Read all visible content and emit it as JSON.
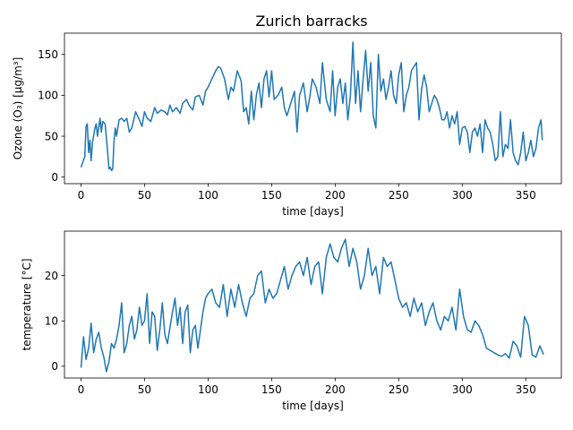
{
  "figure": {
    "title": "Zurich barracks"
  },
  "chart_data": [
    {
      "type": "line",
      "title": "Zurich barracks",
      "xlabel": "time [days]",
      "ylabel": "Ozone (O₃) [µg/m³]",
      "xlim": [
        -13,
        378
      ],
      "ylim": [
        -8,
        176
      ],
      "xticks": [
        0,
        50,
        100,
        150,
        200,
        250,
        300,
        350
      ],
      "yticks": [
        0,
        50,
        100,
        150
      ],
      "grid": false,
      "series": [
        {
          "color": "#1f77b4",
          "x": [
            0,
            3,
            4,
            5,
            6,
            7,
            8,
            9,
            11,
            12,
            13,
            15,
            16,
            17,
            19,
            21,
            22,
            23,
            24,
            25,
            26,
            27,
            28,
            30,
            32,
            34,
            36,
            38,
            40,
            43,
            46,
            48,
            50,
            52,
            55,
            58,
            60,
            63,
            66,
            68,
            70,
            72,
            75,
            78,
            80,
            83,
            85,
            88,
            90,
            93,
            96,
            98,
            100,
            103,
            106,
            108,
            110,
            113,
            116,
            118,
            120,
            123,
            126,
            128,
            130,
            132,
            134,
            136,
            138,
            140,
            142,
            144,
            146,
            148,
            150,
            152,
            155,
            158,
            160,
            162,
            165,
            168,
            170,
            172,
            175,
            178,
            180,
            182,
            185,
            188,
            190,
            193,
            196,
            198,
            200,
            202,
            204,
            206,
            208,
            210,
            212,
            214,
            216,
            218,
            220,
            222,
            224,
            226,
            228,
            230,
            232,
            234,
            236,
            238,
            240,
            242,
            244,
            246,
            248,
            250,
            252,
            254,
            256,
            258,
            260,
            262,
            264,
            266,
            268,
            270,
            272,
            274,
            276,
            278,
            280,
            282,
            284,
            286,
            288,
            290,
            292,
            294,
            296,
            298,
            300,
            302,
            304,
            306,
            308,
            310,
            312,
            314,
            316,
            318,
            320,
            322,
            324,
            326,
            328,
            330,
            332,
            334,
            336,
            338,
            340,
            342,
            344,
            346,
            348,
            350,
            352,
            354,
            356,
            358,
            360,
            362,
            363
          ],
          "y": [
            12,
            25,
            62,
            65,
            30,
            45,
            20,
            42,
            60,
            65,
            50,
            72,
            55,
            68,
            65,
            30,
            10,
            12,
            8,
            10,
            45,
            60,
            50,
            70,
            72,
            68,
            72,
            55,
            60,
            80,
            70,
            62,
            80,
            72,
            68,
            85,
            78,
            82,
            80,
            76,
            88,
            80,
            85,
            78,
            90,
            95,
            88,
            82,
            98,
            100,
            88,
            105,
            110,
            120,
            130,
            135,
            133,
            120,
            95,
            110,
            105,
            130,
            118,
            80,
            85,
            65,
            105,
            70,
            100,
            115,
            85,
            120,
            130,
            98,
            130,
            95,
            100,
            110,
            85,
            75,
            90,
            105,
            55,
            100,
            115,
            80,
            98,
            120,
            110,
            90,
            140,
            95,
            80,
            130,
            75,
            110,
            120,
            90,
            115,
            70,
            100,
            165,
            90,
            130,
            80,
            120,
            155,
            105,
            140,
            75,
            60,
            150,
            105,
            120,
            95,
            110,
            130,
            100,
            90,
            125,
            140,
            80,
            100,
            110,
            130,
            135,
            140,
            70,
            108,
            125,
            110,
            80,
            90,
            100,
            95,
            85,
            70,
            70,
            80,
            60,
            75,
            65,
            80,
            40,
            60,
            62,
            55,
            30,
            55,
            60,
            50,
            65,
            30,
            70,
            60,
            55,
            40,
            20,
            25,
            80,
            25,
            40,
            35,
            70,
            30,
            20,
            15,
            30,
            55,
            20,
            30,
            45,
            25,
            35,
            60,
            70,
            45
          ]
        }
      ]
    },
    {
      "type": "line",
      "title": "",
      "xlabel": "time [days]",
      "ylabel": "temperature [°C]",
      "xlim": [
        -13,
        378
      ],
      "ylim": [
        -2.6,
        29.8
      ],
      "xticks": [
        0,
        50,
        100,
        150,
        200,
        250,
        300,
        350
      ],
      "yticks": [
        0,
        10,
        20
      ],
      "grid": false,
      "series": [
        {
          "color": "#1f77b4",
          "x": [
            0,
            2,
            4,
            6,
            8,
            10,
            12,
            14,
            16,
            18,
            20,
            22,
            24,
            26,
            28,
            30,
            32,
            34,
            36,
            38,
            40,
            42,
            44,
            46,
            48,
            50,
            52,
            54,
            56,
            58,
            60,
            62,
            64,
            66,
            68,
            70,
            72,
            74,
            76,
            78,
            80,
            82,
            84,
            86,
            88,
            90,
            92,
            94,
            96,
            98,
            100,
            103,
            106,
            109,
            112,
            115,
            118,
            121,
            124,
            127,
            130,
            133,
            136,
            139,
            142,
            145,
            148,
            151,
            154,
            157,
            160,
            163,
            166,
            169,
            172,
            175,
            178,
            181,
            184,
            187,
            190,
            193,
            196,
            199,
            202,
            205,
            208,
            211,
            214,
            217,
            220,
            223,
            226,
            229,
            232,
            235,
            238,
            241,
            244,
            247,
            250,
            253,
            256,
            259,
            262,
            265,
            268,
            271,
            274,
            277,
            280,
            283,
            286,
            289,
            292,
            295,
            298,
            301,
            304,
            307,
            310,
            313,
            316,
            319,
            322,
            325,
            328,
            331,
            334,
            337,
            340,
            343,
            346,
            349,
            352,
            355,
            358,
            361,
            364
          ],
          "y": [
            -0.3,
            6.5,
            1.5,
            4,
            9.5,
            3,
            6,
            7.5,
            4,
            2,
            -1.2,
            1,
            5,
            4,
            6,
            9,
            14,
            3,
            5,
            9,
            11,
            6,
            8,
            13,
            9,
            10,
            16,
            5,
            12,
            11,
            3.5,
            8,
            14,
            7,
            5,
            8.5,
            12,
            15,
            9,
            13,
            5,
            12,
            13.5,
            3,
            8,
            9,
            4,
            8,
            12,
            15,
            16,
            17,
            14,
            13,
            18,
            11,
            17,
            13,
            18,
            14,
            11,
            15,
            16,
            20,
            21,
            14,
            17,
            15,
            16,
            19,
            22,
            17,
            20,
            22,
            23,
            20,
            24,
            18,
            22,
            23,
            16,
            24,
            27,
            24,
            23,
            26,
            28,
            22,
            26,
            23,
            17,
            20,
            26,
            20,
            22,
            16,
            24,
            22,
            23,
            19,
            15,
            13,
            14,
            11,
            15,
            12,
            14,
            9,
            12,
            14,
            10,
            8,
            11,
            10,
            13,
            8,
            17,
            11,
            8,
            7.5,
            10,
            9,
            7,
            4,
            3.5,
            3,
            2.5,
            2.2,
            2.8,
            1.8,
            5.5,
            4.5,
            2,
            11,
            9,
            2.5,
            2,
            4.5,
            2.6
          ]
        }
      ]
    }
  ]
}
